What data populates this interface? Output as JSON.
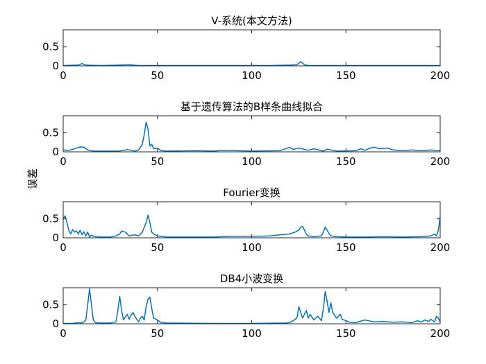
{
  "figure": {
    "ylabel": "误差"
  },
  "chart_data": [
    {
      "type": "line",
      "title": "V-系统(本文方法)",
      "xlim": [
        0,
        200
      ],
      "ylim": [
        0,
        0.95
      ],
      "xticks": [
        0,
        50,
        100,
        150,
        200
      ],
      "yticks": [
        0,
        0.5
      ],
      "xtick_labels": [
        "0",
        "50",
        "100",
        "150",
        "200"
      ],
      "ytick_labels": [
        "0",
        "0.5"
      ],
      "color": "#0072BD",
      "series": [
        {
          "x": [
            0,
            8,
            10,
            12,
            20,
            30,
            35,
            40,
            60,
            80,
            100,
            110,
            120,
            124,
            126,
            128,
            130,
            140,
            160,
            180,
            200
          ],
          "y": [
            0.01,
            0.02,
            0.06,
            0.02,
            0.01,
            0.02,
            0.03,
            0.01,
            0.01,
            0.01,
            0.01,
            0.01,
            0.02,
            0.03,
            0.11,
            0.03,
            0.01,
            0.01,
            0.01,
            0.01,
            0.01
          ]
        }
      ]
    },
    {
      "type": "line",
      "title": "基于遗传算法的B样条曲线拟合",
      "xlim": [
        0,
        200
      ],
      "ylim": [
        0,
        0.95
      ],
      "xticks": [
        0,
        50,
        100,
        150,
        200
      ],
      "yticks": [
        0,
        0.5
      ],
      "xtick_labels": [
        "0",
        "50",
        "100",
        "150",
        "200"
      ],
      "ytick_labels": [
        "0",
        "0.5"
      ],
      "color": "#0072BD",
      "series": [
        {
          "x": [
            0,
            3,
            6,
            9,
            11,
            13,
            16,
            20,
            30,
            34,
            36,
            38,
            40,
            42,
            43,
            44,
            45,
            46,
            47,
            48,
            50,
            52,
            55,
            70,
            80,
            85,
            100,
            115,
            118,
            120,
            122,
            125,
            130,
            133,
            138,
            140,
            145,
            155,
            158,
            160,
            163,
            165,
            168,
            172,
            175,
            180,
            185,
            190,
            195,
            200
          ],
          "y": [
            0.05,
            0.04,
            0.08,
            0.13,
            0.12,
            0.05,
            0.02,
            0.02,
            0.02,
            0.06,
            0.04,
            0.02,
            0.05,
            0.2,
            0.45,
            0.78,
            0.6,
            0.15,
            0.2,
            0.08,
            0.1,
            0.03,
            0.02,
            0.03,
            0.02,
            0.04,
            0.02,
            0.03,
            0.08,
            0.12,
            0.06,
            0.1,
            0.04,
            0.08,
            0.02,
            0.07,
            0.02,
            0.03,
            0.08,
            0.04,
            0.1,
            0.12,
            0.08,
            0.1,
            0.05,
            0.03,
            0.05,
            0.03,
            0.05,
            0.03
          ]
        }
      ]
    },
    {
      "type": "line",
      "title": "Fourier变换",
      "xlim": [
        0,
        200
      ],
      "ylim": [
        0,
        0.95
      ],
      "xticks": [
        0,
        50,
        100,
        150,
        200
      ],
      "yticks": [
        0,
        0.5
      ],
      "xtick_labels": [
        "0",
        "50",
        "100",
        "150",
        "200"
      ],
      "ytick_labels": [
        "0",
        "0.5"
      ],
      "color": "#0072BD",
      "series": [
        {
          "x": [
            0,
            1,
            2,
            3,
            4,
            5,
            6,
            7,
            8,
            9,
            10,
            11,
            12,
            13,
            14,
            15,
            17,
            20,
            25,
            28,
            30,
            31,
            33,
            35,
            38,
            40,
            42,
            44,
            45,
            46,
            47,
            48,
            50,
            55,
            60,
            70,
            80,
            90,
            100,
            110,
            115,
            120,
            123,
            125,
            126,
            127,
            128,
            129,
            130,
            133,
            137,
            138,
            139,
            140,
            141,
            142,
            145,
            150,
            160,
            170,
            180,
            190,
            195,
            197,
            198,
            199,
            200
          ],
          "y": [
            0.5,
            0.58,
            0.4,
            0.2,
            0.1,
            0.22,
            0.15,
            0.18,
            0.1,
            0.2,
            0.08,
            0.16,
            0.05,
            0.15,
            0.02,
            0.07,
            0.03,
            0.02,
            0.02,
            0.05,
            0.1,
            0.18,
            0.15,
            0.05,
            0.08,
            0.05,
            0.15,
            0.4,
            0.6,
            0.4,
            0.15,
            0.1,
            0.05,
            0.02,
            0.02,
            0.02,
            0.02,
            0.04,
            0.04,
            0.05,
            0.08,
            0.1,
            0.15,
            0.2,
            0.28,
            0.3,
            0.2,
            0.1,
            0.05,
            0.03,
            0.05,
            0.15,
            0.28,
            0.2,
            0.12,
            0.05,
            0.03,
            0.02,
            0.02,
            0.03,
            0.02,
            0.03,
            0.05,
            0.1,
            0.05,
            0.2,
            0.55
          ]
        }
      ]
    },
    {
      "type": "line",
      "title": "DB4小波变换",
      "xlim": [
        0,
        200
      ],
      "ylim": [
        0,
        0.95
      ],
      "xticks": [
        0,
        50,
        100,
        150,
        200
      ],
      "yticks": [
        0,
        0.5
      ],
      "xtick_labels": [
        "0",
        "50",
        "100",
        "150",
        "200"
      ],
      "ytick_labels": [
        "0",
        "0.5"
      ],
      "color": "#0072BD",
      "series": [
        {
          "x": [
            0,
            5,
            8,
            10,
            11,
            12,
            13,
            14,
            15,
            16,
            17,
            20,
            25,
            28,
            29,
            30,
            31,
            32,
            33,
            34,
            35,
            36,
            37,
            38,
            40,
            41,
            42,
            43,
            44,
            45,
            46,
            47,
            48,
            50,
            52,
            55,
            80,
            100,
            118,
            120,
            122,
            124,
            125,
            126,
            127,
            128,
            129,
            130,
            131,
            133,
            135,
            137,
            138,
            139,
            140,
            141,
            142,
            143,
            145,
            147,
            148,
            150,
            152,
            155,
            160,
            165,
            170,
            175,
            180,
            185,
            188,
            190,
            192,
            194,
            195,
            197,
            198,
            199,
            200
          ],
          "y": [
            0.01,
            0.01,
            0.03,
            0.02,
            0.05,
            0.1,
            0.5,
            0.92,
            0.5,
            0.1,
            0.03,
            0.02,
            0.02,
            0.05,
            0.35,
            0.72,
            0.35,
            0.1,
            0.18,
            0.25,
            0.12,
            0.22,
            0.3,
            0.2,
            0.05,
            0.15,
            0.2,
            0.1,
            0.45,
            0.65,
            0.7,
            0.4,
            0.15,
            0.1,
            0.03,
            0.02,
            0.01,
            0.01,
            0.02,
            0.03,
            0.08,
            0.15,
            0.45,
            0.3,
            0.15,
            0.25,
            0.35,
            0.15,
            0.25,
            0.1,
            0.2,
            0.08,
            0.4,
            0.85,
            0.6,
            0.3,
            0.55,
            0.3,
            0.15,
            0.25,
            0.12,
            0.08,
            0.04,
            0.03,
            0.1,
            0.05,
            0.06,
            0.04,
            0.05,
            0.03,
            0.08,
            0.05,
            0.1,
            0.06,
            0.12,
            0.05,
            0.2,
            0.15,
            0.05
          ]
        }
      ]
    }
  ]
}
